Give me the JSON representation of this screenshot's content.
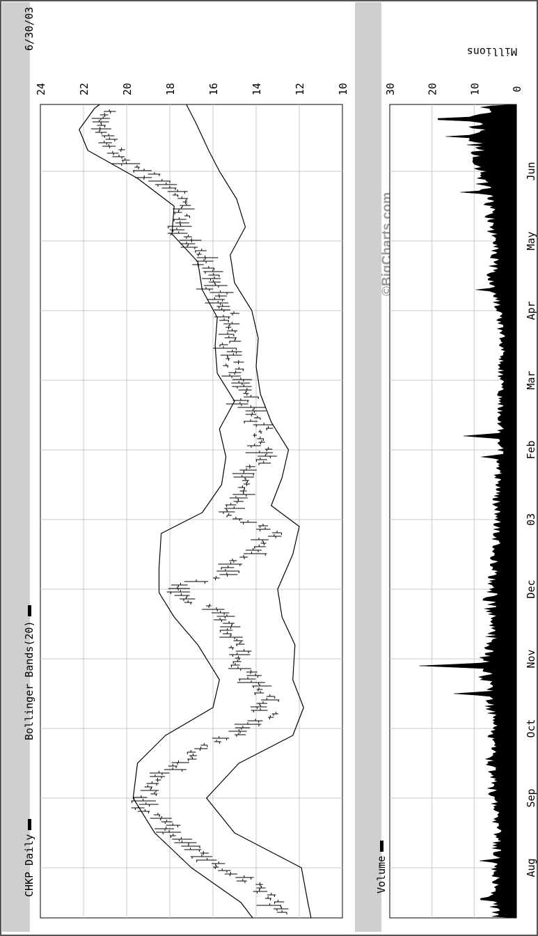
{
  "header": {
    "symbol_label": "CHKP Daily",
    "indicator_label": "Bollinger Bands(20)",
    "date_label": "6/30/03"
  },
  "volume_header": {
    "label": "Volume",
    "units_label": "Millions"
  },
  "watermark": "©BigCharts.com",
  "chart_data": [
    {
      "type": "line",
      "title": "CHKP Daily",
      "series_name": "Bollinger Bands(20)",
      "ylabel": "",
      "ylim": [
        10,
        24
      ],
      "yticks": [
        10,
        12,
        14,
        16,
        18,
        20,
        22,
        24
      ],
      "x_range_months": [
        0.0,
        11.0
      ],
      "xticks": [
        {
          "label": "Aug",
          "m": 1.0
        },
        {
          "label": "Sep",
          "m": 2.0
        },
        {
          "label": "Oct",
          "m": 3.0
        },
        {
          "label": "Nov",
          "m": 4.0
        },
        {
          "label": "Dec",
          "m": 5.0
        },
        {
          "label": "03",
          "m": 6.0
        },
        {
          "label": "Feb",
          "m": 7.0
        },
        {
          "label": "Mar",
          "m": 8.0
        },
        {
          "label": "Apr",
          "m": 9.0
        },
        {
          "label": "May",
          "m": 10.0
        },
        {
          "label": "Jun",
          "m": 11.0
        }
      ],
      "grid": true,
      "price_keypoints": [
        [
          0.05,
          11.8
        ],
        [
          0.4,
          12.8
        ],
        [
          0.8,
          14.3
        ],
        [
          1.1,
          16.2
        ],
        [
          1.5,
          17.8
        ],
        [
          1.9,
          19.3
        ],
        [
          2.3,
          18.5
        ],
        [
          2.7,
          16.5
        ],
        [
          3.0,
          14.5
        ],
        [
          3.2,
          13.4
        ],
        [
          3.6,
          13.8
        ],
        [
          3.9,
          14.7
        ],
        [
          4.3,
          14.9
        ],
        [
          4.7,
          15.9
        ],
        [
          4.85,
          17.2
        ],
        [
          5.0,
          18.0
        ],
        [
          5.2,
          15.5
        ],
        [
          5.5,
          14.5
        ],
        [
          5.8,
          13.2
        ],
        [
          6.1,
          15.2
        ],
        [
          6.5,
          14.7
        ],
        [
          6.9,
          13.8
        ],
        [
          7.3,
          13.7
        ],
        [
          7.7,
          14.5
        ],
        [
          8.1,
          15.0
        ],
        [
          8.5,
          15.3
        ],
        [
          8.9,
          15.2
        ],
        [
          9.3,
          16.0
        ],
        [
          9.8,
          16.6
        ],
        [
          10.2,
          17.5
        ],
        [
          10.6,
          17.5
        ],
        [
          10.9,
          18.8
        ],
        [
          11.3,
          20.5
        ],
        [
          11.7,
          21.5
        ],
        [
          12.0,
          20.2
        ],
        [
          12.2,
          19.5
        ]
      ],
      "upper_band_keypoints": [
        [
          0.05,
          13.6
        ],
        [
          0.5,
          14.7
        ],
        [
          1.0,
          17.0
        ],
        [
          1.5,
          18.7
        ],
        [
          2.0,
          19.7
        ],
        [
          2.5,
          19.5
        ],
        [
          2.9,
          18.2
        ],
        [
          3.3,
          16.0
        ],
        [
          3.7,
          15.7
        ],
        [
          4.2,
          16.7
        ],
        [
          4.6,
          17.8
        ],
        [
          4.95,
          18.5
        ],
        [
          5.3,
          18.5
        ],
        [
          5.8,
          18.4
        ],
        [
          6.1,
          16.5
        ],
        [
          6.5,
          15.6
        ],
        [
          6.9,
          15.4
        ],
        [
          7.3,
          15.7
        ],
        [
          7.7,
          15.0
        ],
        [
          8.1,
          15.8
        ],
        [
          8.5,
          15.9
        ],
        [
          8.9,
          15.8
        ],
        [
          9.3,
          16.5
        ],
        [
          9.7,
          16.7
        ],
        [
          10.1,
          17.9
        ],
        [
          10.5,
          17.8
        ],
        [
          10.9,
          19.5
        ],
        [
          11.3,
          21.8
        ],
        [
          11.6,
          22.2
        ],
        [
          11.9,
          21.5
        ],
        [
          12.2,
          20.3
        ]
      ],
      "lower_band_keypoints": [
        [
          0.05,
          11.3
        ],
        [
          0.5,
          11.6
        ],
        [
          1.0,
          11.9
        ],
        [
          1.5,
          15.0
        ],
        [
          2.0,
          16.3
        ],
        [
          2.5,
          14.8
        ],
        [
          2.9,
          12.3
        ],
        [
          3.3,
          11.8
        ],
        [
          3.7,
          12.3
        ],
        [
          4.2,
          12.2
        ],
        [
          4.6,
          12.8
        ],
        [
          5.0,
          13.0
        ],
        [
          5.5,
          12.3
        ],
        [
          5.9,
          12.0
        ],
        [
          6.2,
          13.3
        ],
        [
          6.6,
          12.8
        ],
        [
          7.0,
          12.5
        ],
        [
          7.4,
          13.3
        ],
        [
          7.8,
          13.8
        ],
        [
          8.2,
          14.0
        ],
        [
          8.6,
          13.9
        ],
        [
          9.0,
          14.2
        ],
        [
          9.4,
          15.0
        ],
        [
          9.8,
          15.2
        ],
        [
          10.2,
          14.5
        ],
        [
          10.6,
          14.9
        ],
        [
          11.0,
          15.7
        ],
        [
          11.3,
          16.2
        ],
        [
          11.7,
          16.8
        ],
        [
          12.0,
          17.3
        ],
        [
          12.2,
          17.8
        ]
      ]
    },
    {
      "type": "area",
      "title": "Volume",
      "ylabel": "Millions",
      "ylim": [
        0,
        30
      ],
      "yticks": [
        0,
        10,
        20,
        30
      ],
      "x_range_months": [
        0.0,
        11.0
      ],
      "grid": true,
      "volume_base_keypoints": [
        [
          0.05,
          4.5
        ],
        [
          0.6,
          5.5
        ],
        [
          1.0,
          4.8
        ],
        [
          1.5,
          4.5
        ],
        [
          2.0,
          5.3
        ],
        [
          2.5,
          6.0
        ],
        [
          3.0,
          5.3
        ],
        [
          3.5,
          6.3
        ],
        [
          3.9,
          7.8
        ],
        [
          4.3,
          5.8
        ],
        [
          4.7,
          6.3
        ],
        [
          5.0,
          5.6
        ],
        [
          5.5,
          5.1
        ],
        [
          6.0,
          4.6
        ],
        [
          6.5,
          4.6
        ],
        [
          7.0,
          3.8
        ],
        [
          7.5,
          3.7
        ],
        [
          8.0,
          3.7
        ],
        [
          8.5,
          3.3
        ],
        [
          9.0,
          4.2
        ],
        [
          9.5,
          5.7
        ],
        [
          10.0,
          5.2
        ],
        [
          10.5,
          6.5
        ],
        [
          11.0,
          8.5
        ],
        [
          11.5,
          10.0
        ],
        [
          12.0,
          7.0
        ],
        [
          12.2,
          6.0
        ]
      ],
      "volume_spikes": [
        [
          0.2,
          9.5
        ],
        [
          0.55,
          10.2
        ],
        [
          1.1,
          8.7
        ],
        [
          3.5,
          14.8
        ],
        [
          3.9,
          23.0
        ],
        [
          4.85,
          9.5
        ],
        [
          6.9,
          8.3
        ],
        [
          7.2,
          12.5
        ],
        [
          9.3,
          9.6
        ],
        [
          10.7,
          13.2
        ],
        [
          11.5,
          16.7
        ],
        [
          11.75,
          22.3
        ],
        [
          12.05,
          9.0
        ]
      ]
    }
  ]
}
